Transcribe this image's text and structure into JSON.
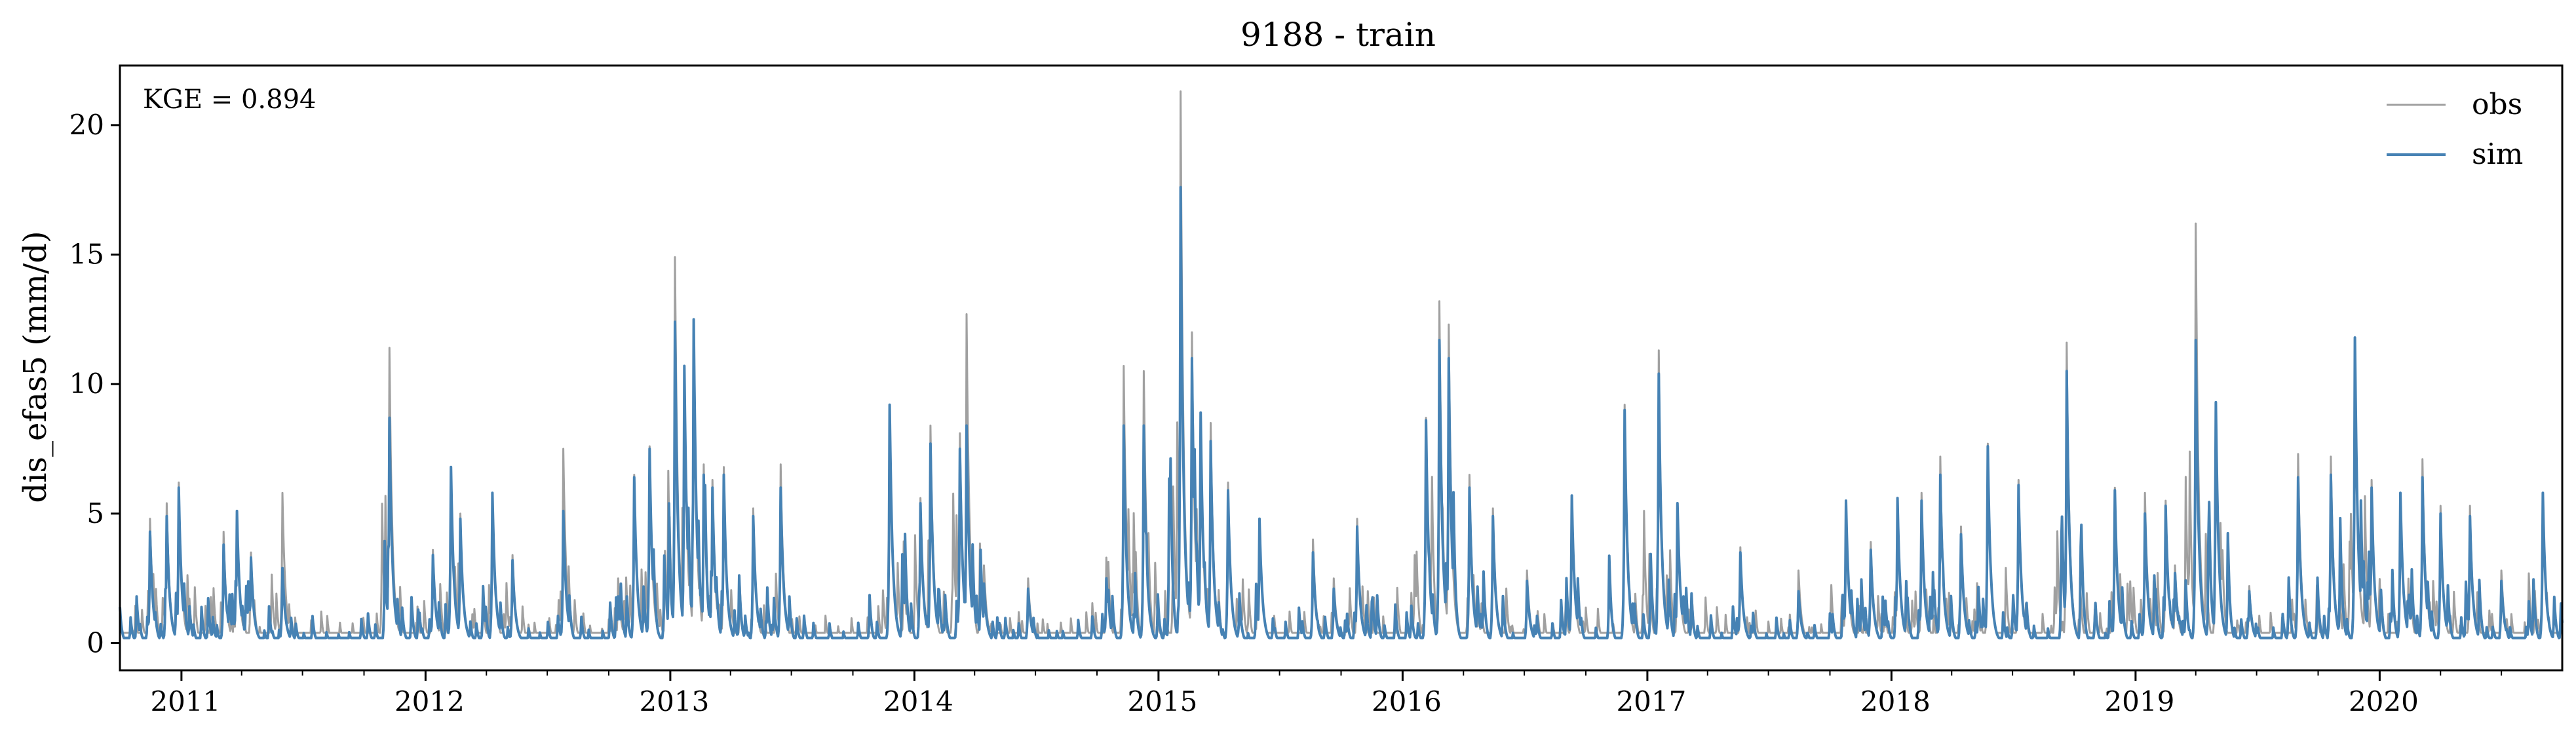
{
  "chart_data": {
    "type": "line",
    "title": "9188 - train",
    "xlabel": "",
    "ylabel": "dis_efas5 (mm/d)",
    "annotation": "KGE = 0.894",
    "xlim": [
      "2010-10-01",
      "2020-09-30"
    ],
    "ylim": [
      -1.05,
      22.3
    ],
    "yticks": [
      0,
      5,
      10,
      15,
      20
    ],
    "xticks": [
      {
        "date": "2011-01-01",
        "label": "2011"
      },
      {
        "date": "2012-01-01",
        "label": "2012"
      },
      {
        "date": "2013-01-01",
        "label": "2013"
      },
      {
        "date": "2014-01-01",
        "label": "2014"
      },
      {
        "date": "2015-01-01",
        "label": "2015"
      },
      {
        "date": "2016-01-01",
        "label": "2016"
      },
      {
        "date": "2017-01-01",
        "label": "2017"
      },
      {
        "date": "2018-01-01",
        "label": "2018"
      },
      {
        "date": "2019-01-01",
        "label": "2019"
      },
      {
        "date": "2020-01-01",
        "label": "2020"
      }
    ],
    "grid": false,
    "legend_position": "top-right",
    "series": [
      {
        "name": "obs",
        "color": "#a0a0a0",
        "baseline": 0.4,
        "peaks": [
          [
            "2010-11-15",
            4.8
          ],
          [
            "2010-12-10",
            5.4
          ],
          [
            "2010-12-28",
            6.2
          ],
          [
            "2011-03-05",
            4.3
          ],
          [
            "2011-03-25",
            5.1
          ],
          [
            "2011-04-15",
            3.5
          ],
          [
            "2011-06-01",
            5.8
          ],
          [
            "2011-11-08",
            11.4
          ],
          [
            "2012-01-12",
            3.6
          ],
          [
            "2012-02-08",
            6.7
          ],
          [
            "2012-02-22",
            5.0
          ],
          [
            "2012-04-10",
            5.8
          ],
          [
            "2012-05-10",
            3.4
          ],
          [
            "2012-07-25",
            7.5
          ],
          [
            "2012-10-15",
            2.5
          ],
          [
            "2012-11-08",
            6.5
          ],
          [
            "2012-12-01",
            7.6
          ],
          [
            "2013-01-08",
            14.9
          ],
          [
            "2013-01-22",
            10.6
          ],
          [
            "2013-02-05",
            12.5
          ],
          [
            "2013-02-20",
            6.9
          ],
          [
            "2013-03-05",
            6.3
          ],
          [
            "2013-03-22",
            6.8
          ],
          [
            "2013-05-05",
            5.2
          ],
          [
            "2013-06-15",
            6.9
          ],
          [
            "2013-11-25",
            9.2
          ],
          [
            "2014-01-10",
            5.6
          ],
          [
            "2014-01-25",
            8.4
          ],
          [
            "2014-03-10",
            8.1
          ],
          [
            "2014-03-20",
            12.7
          ],
          [
            "2014-04-15",
            3.0
          ],
          [
            "2014-06-20",
            2.5
          ],
          [
            "2014-10-15",
            3.3
          ],
          [
            "2014-11-10",
            10.7
          ],
          [
            "2014-12-10",
            10.5
          ],
          [
            "2015-02-03",
            21.3
          ],
          [
            "2015-02-20",
            12.0
          ],
          [
            "2015-03-05",
            8.9
          ],
          [
            "2015-03-20",
            8.5
          ],
          [
            "2015-04-15",
            6.2
          ],
          [
            "2015-06-01",
            4.8
          ],
          [
            "2015-08-20",
            4.0
          ],
          [
            "2015-09-20",
            2.5
          ],
          [
            "2015-10-25",
            4.8
          ],
          [
            "2016-02-05",
            8.7
          ],
          [
            "2016-02-25",
            13.2
          ],
          [
            "2016-03-10",
            12.3
          ],
          [
            "2016-04-10",
            6.5
          ],
          [
            "2016-05-15",
            5.2
          ],
          [
            "2016-07-05",
            2.8
          ],
          [
            "2016-09-10",
            5.7
          ],
          [
            "2016-11-28",
            9.2
          ],
          [
            "2017-01-18",
            11.3
          ],
          [
            "2017-02-15",
            5.4
          ],
          [
            "2017-05-20",
            3.7
          ],
          [
            "2017-08-15",
            2.8
          ],
          [
            "2017-10-25",
            5.5
          ],
          [
            "2017-12-01",
            3.9
          ],
          [
            "2018-01-10",
            5.6
          ],
          [
            "2018-02-15",
            5.8
          ],
          [
            "2018-03-15",
            7.2
          ],
          [
            "2018-04-15",
            4.5
          ],
          [
            "2018-05-25",
            7.7
          ],
          [
            "2018-07-10",
            6.3
          ],
          [
            "2018-09-20",
            11.6
          ],
          [
            "2018-11-01",
            1.3
          ],
          [
            "2018-12-01",
            6.0
          ],
          [
            "2019-01-15",
            5.8
          ],
          [
            "2019-02-15",
            5.5
          ],
          [
            "2019-03-01",
            3.0
          ],
          [
            "2019-04-01",
            16.2
          ],
          [
            "2019-05-01",
            9.3
          ],
          [
            "2019-06-20",
            2.2
          ],
          [
            "2019-09-01",
            7.3
          ],
          [
            "2019-10-20",
            7.2
          ],
          [
            "2019-11-25",
            11.5
          ],
          [
            "2019-12-20",
            6.3
          ],
          [
            "2020-02-01",
            5.8
          ],
          [
            "2020-03-05",
            7.1
          ],
          [
            "2020-04-01",
            5.3
          ],
          [
            "2020-05-15",
            5.3
          ],
          [
            "2020-07-01",
            2.8
          ],
          [
            "2020-09-01",
            5.8
          ]
        ]
      },
      {
        "name": "sim",
        "color": "#4682b4",
        "baseline": 0.2,
        "peaks": [
          [
            "2010-11-15",
            4.3
          ],
          [
            "2010-12-10",
            4.9
          ],
          [
            "2010-12-28",
            6.0
          ],
          [
            "2011-03-05",
            3.8
          ],
          [
            "2011-03-25",
            5.1
          ],
          [
            "2011-04-15",
            3.3
          ],
          [
            "2011-06-01",
            2.9
          ],
          [
            "2011-11-08",
            8.7
          ],
          [
            "2012-01-12",
            3.4
          ],
          [
            "2012-02-08",
            6.8
          ],
          [
            "2012-02-22",
            4.8
          ],
          [
            "2012-04-10",
            5.8
          ],
          [
            "2012-05-10",
            3.2
          ],
          [
            "2012-07-25",
            5.1
          ],
          [
            "2012-10-15",
            1.8
          ],
          [
            "2012-11-08",
            6.4
          ],
          [
            "2012-12-01",
            7.5
          ],
          [
            "2013-01-08",
            12.4
          ],
          [
            "2013-01-22",
            10.7
          ],
          [
            "2013-02-05",
            12.5
          ],
          [
            "2013-02-20",
            6.5
          ],
          [
            "2013-03-05",
            6.0
          ],
          [
            "2013-03-22",
            6.5
          ],
          [
            "2013-05-05",
            4.9
          ],
          [
            "2013-06-15",
            6.0
          ],
          [
            "2013-11-25",
            9.2
          ],
          [
            "2014-01-10",
            5.4
          ],
          [
            "2014-01-25",
            7.7
          ],
          [
            "2014-03-10",
            7.5
          ],
          [
            "2014-03-20",
            8.4
          ],
          [
            "2014-04-15",
            2.3
          ],
          [
            "2014-06-20",
            2.1
          ],
          [
            "2014-10-15",
            2.5
          ],
          [
            "2014-11-10",
            8.4
          ],
          [
            "2014-12-10",
            8.4
          ],
          [
            "2015-02-03",
            17.6
          ],
          [
            "2015-02-20",
            11.0
          ],
          [
            "2015-03-05",
            8.9
          ],
          [
            "2015-03-20",
            7.8
          ],
          [
            "2015-04-15",
            5.9
          ],
          [
            "2015-06-01",
            4.8
          ],
          [
            "2015-08-20",
            3.5
          ],
          [
            "2015-09-20",
            2.1
          ],
          [
            "2015-10-25",
            4.5
          ],
          [
            "2016-02-05",
            8.6
          ],
          [
            "2016-02-25",
            11.7
          ],
          [
            "2016-03-10",
            11.0
          ],
          [
            "2016-04-10",
            6.0
          ],
          [
            "2016-05-15",
            4.9
          ],
          [
            "2016-07-05",
            2.4
          ],
          [
            "2016-09-10",
            5.7
          ],
          [
            "2016-11-28",
            9.0
          ],
          [
            "2017-01-18",
            10.4
          ],
          [
            "2017-02-15",
            5.4
          ],
          [
            "2017-05-20",
            3.5
          ],
          [
            "2017-08-15",
            2.0
          ],
          [
            "2017-10-25",
            5.5
          ],
          [
            "2017-12-01",
            3.6
          ],
          [
            "2018-01-10",
            5.6
          ],
          [
            "2018-02-15",
            5.5
          ],
          [
            "2018-03-15",
            6.5
          ],
          [
            "2018-04-15",
            4.2
          ],
          [
            "2018-05-25",
            7.6
          ],
          [
            "2018-07-10",
            6.1
          ],
          [
            "2018-09-20",
            10.5
          ],
          [
            "2018-11-01",
            0.9
          ],
          [
            "2018-12-01",
            5.9
          ],
          [
            "2019-01-15",
            5.0
          ],
          [
            "2019-02-15",
            5.3
          ],
          [
            "2019-03-01",
            2.7
          ],
          [
            "2019-04-01",
            11.7
          ],
          [
            "2019-05-01",
            9.3
          ],
          [
            "2019-06-20",
            2.0
          ],
          [
            "2019-09-01",
            6.4
          ],
          [
            "2019-10-20",
            6.5
          ],
          [
            "2019-11-25",
            11.8
          ],
          [
            "2019-12-20",
            6.0
          ],
          [
            "2020-02-01",
            5.8
          ],
          [
            "2020-03-05",
            6.4
          ],
          [
            "2020-04-01",
            5.0
          ],
          [
            "2020-05-15",
            4.9
          ],
          [
            "2020-07-01",
            2.4
          ],
          [
            "2020-09-01",
            5.8
          ]
        ]
      }
    ]
  }
}
